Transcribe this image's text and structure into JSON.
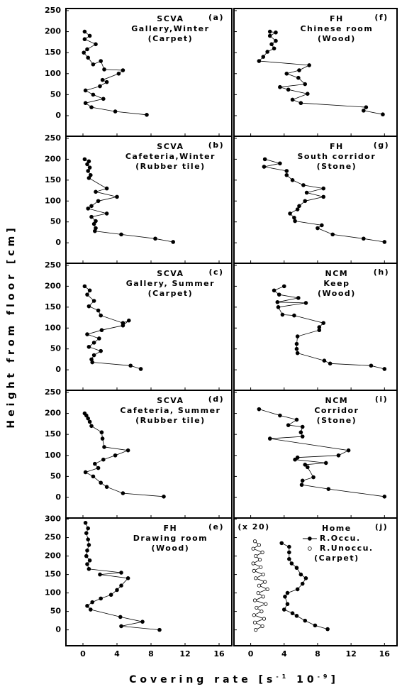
{
  "ylabel": "Height from floor [cm]",
  "xlabel": [
    "Covering rate [s",
    "-1",
    " 10",
    "-9",
    "]"
  ],
  "chart_data": [
    {
      "type": "line",
      "label": "(a)",
      "title_lines": [
        "SCVA",
        "Gallery,Winter",
        "(Carpet)"
      ],
      "xlim": [
        -2,
        17.5
      ],
      "ylim": [
        -49,
        255
      ],
      "xticks": [
        0,
        4,
        8,
        12,
        16
      ],
      "yticks": [
        0,
        50,
        100,
        150,
        200,
        250
      ],
      "series": [
        {
          "marker": "filled",
          "x": [
            0.2,
            0.8,
            0.2,
            1.5,
            0.5,
            0.1,
            0.6,
            1.2,
            2.1,
            2.5,
            4.7,
            4.2,
            2.3,
            2.8,
            2,
            0.3,
            1.2,
            2.4,
            0.3,
            1,
            3.8,
            7.5
          ],
          "y": [
            200,
            190,
            182,
            170,
            158,
            150,
            138,
            122,
            130,
            110,
            108,
            100,
            85,
            80,
            70,
            60,
            50,
            40,
            30,
            20,
            10,
            2
          ]
        }
      ]
    },
    {
      "type": "line",
      "label": "(b)",
      "title_lines": [
        "SCVA",
        "Cafeteria,Winter",
        "(Rubber tile)"
      ],
      "xlim": [
        -2,
        17.5
      ],
      "ylim": [
        -49,
        255
      ],
      "xticks": [
        0,
        4,
        8,
        12,
        16
      ],
      "yticks": [
        0,
        50,
        100,
        150,
        200,
        250
      ],
      "series": [
        {
          "marker": "filled",
          "x": [
            0.2,
            0.7,
            0.5,
            0.8,
            0.6,
            0.9,
            0.7,
            2.8,
            1.5,
            4,
            1.8,
            1,
            0.6,
            2.8,
            1,
            1.5,
            1.3,
            1.5,
            1.4,
            4.5,
            8.5,
            10.6
          ],
          "y": [
            200,
            195,
            188,
            180,
            172,
            162,
            155,
            130,
            122,
            110,
            100,
            88,
            82,
            70,
            62,
            52,
            45,
            35,
            28,
            20,
            10,
            2
          ]
        }
      ]
    },
    {
      "type": "line",
      "label": "(c)",
      "title_lines": [
        "SCVA",
        "Gallery, Summer",
        "(Carpet)"
      ],
      "xlim": [
        -2,
        17.5
      ],
      "ylim": [
        -49,
        255
      ],
      "xticks": [
        0,
        4,
        8,
        12,
        16
      ],
      "yticks": [
        0,
        50,
        100,
        150,
        200,
        250
      ],
      "series": [
        {
          "marker": "filled",
          "x": [
            0.2,
            0.8,
            0.5,
            1.3,
            0.7,
            1.8,
            2.1,
            4.7,
            5.4,
            4.7,
            2.2,
            0.5,
            1.9,
            1.3,
            0.7,
            2.1,
            1.3,
            1,
            1.1,
            5.6,
            6.8
          ],
          "y": [
            200,
            190,
            180,
            165,
            152,
            142,
            130,
            112,
            118,
            106,
            95,
            85,
            75,
            65,
            55,
            45,
            35,
            25,
            18,
            10,
            2
          ]
        }
      ]
    },
    {
      "type": "line",
      "label": "(d)",
      "title_lines": [
        "SCVA",
        "Cafeteria, Summer",
        "(Rubber tile)"
      ],
      "xlim": [
        -2,
        17.5
      ],
      "ylim": [
        -49,
        255
      ],
      "xticks": [
        0,
        4,
        8,
        12,
        16
      ],
      "yticks": [
        0,
        50,
        100,
        150,
        200,
        250
      ],
      "series": [
        {
          "marker": "filled",
          "x": [
            0.2,
            0.4,
            0.6,
            0.8,
            1,
            2.2,
            2.3,
            2.5,
            5.3,
            3.8,
            2.4,
            1.4,
            1.8,
            0.3,
            1.2,
            2.1,
            2.8,
            4.7,
            9.5
          ],
          "y": [
            200,
            195,
            188,
            180,
            170,
            155,
            140,
            120,
            112,
            100,
            90,
            80,
            70,
            60,
            50,
            35,
            25,
            10,
            2
          ]
        }
      ]
    },
    {
      "type": "line",
      "label": "(e)",
      "title_lines": [
        "FH",
        "Drawing room",
        "(Wood)"
      ],
      "xlim": [
        -2,
        17.5
      ],
      "ylim": [
        -43,
        303
      ],
      "xticks": [
        0,
        4,
        8,
        12,
        16
      ],
      "yticks": [
        0,
        50,
        100,
        150,
        200,
        250,
        300
      ],
      "series": [
        {
          "marker": "filled",
          "x": [
            0.3,
            0.6,
            0.4,
            0.6,
            0.7,
            0.5,
            0.4,
            0.8,
            0.5,
            0.7,
            4.5,
            2,
            5.3,
            4.5,
            4,
            3.3,
            2.1,
            1.1,
            0.5,
            0.9,
            4.4,
            7,
            4.5,
            9
          ],
          "y": [
            290,
            275,
            262,
            245,
            230,
            215,
            200,
            188,
            178,
            165,
            155,
            150,
            140,
            120,
            108,
            95,
            85,
            75,
            65,
            55,
            35,
            22,
            10,
            0
          ]
        }
      ]
    },
    {
      "type": "line",
      "label": "(f)",
      "title_lines": [
        "FH",
        "Chinese room",
        "(Wood)"
      ],
      "xlim": [
        -2,
        17.5
      ],
      "ylim": [
        -49,
        255
      ],
      "xticks": [
        0,
        4,
        8,
        12,
        16
      ],
      "yticks": [
        0,
        50,
        100,
        150,
        200,
        250
      ],
      "series": [
        {
          "marker": "filled",
          "x": [
            2.3,
            3,
            2.3,
            3,
            2.5,
            2.8,
            2,
            1.5,
            1,
            7,
            5.8,
            4.3,
            5.7,
            6.5,
            3.5,
            4.5,
            6.8,
            5,
            6,
            13.8,
            13.5,
            15.8
          ],
          "y": [
            200,
            198,
            190,
            178,
            170,
            160,
            152,
            140,
            130,
            120,
            108,
            100,
            90,
            75,
            68,
            62,
            52,
            38,
            30,
            20,
            12,
            3
          ]
        }
      ]
    },
    {
      "type": "line",
      "label": "(g)",
      "title_lines": [
        "FH",
        "South corridor",
        "(Stone)"
      ],
      "xlim": [
        -2,
        17.5
      ],
      "ylim": [
        -49,
        255
      ],
      "xticks": [
        0,
        4,
        8,
        12,
        16
      ],
      "yticks": [
        0,
        50,
        100,
        150,
        200,
        250
      ],
      "series": [
        {
          "marker": "filled",
          "x": [
            1.7,
            3.5,
            1.6,
            4.3,
            4.3,
            5,
            6.3,
            8.7,
            6.7,
            8.7,
            6.5,
            5.8,
            5.6,
            4.7,
            5.2,
            5.3,
            8.5,
            8,
            9.8,
            13.5,
            16
          ],
          "y": [
            200,
            190,
            182,
            172,
            162,
            150,
            138,
            130,
            120,
            110,
            100,
            88,
            80,
            70,
            60,
            52,
            42,
            35,
            20,
            10,
            2
          ]
        }
      ]
    },
    {
      "type": "line",
      "label": "(h)",
      "title_lines": [
        "NCM",
        "Keep",
        "(Wood)"
      ],
      "xlim": [
        -2,
        17.5
      ],
      "ylim": [
        -49,
        255
      ],
      "xticks": [
        0,
        4,
        8,
        12,
        16
      ],
      "yticks": [
        0,
        50,
        100,
        150,
        200,
        250
      ],
      "series": [
        {
          "marker": "filled",
          "x": [
            4,
            2.8,
            3.4,
            5.7,
            3.2,
            6.6,
            3.3,
            3.8,
            5.2,
            8.7,
            8.2,
            8.2,
            5.6,
            5.5,
            5.5,
            5.6,
            8.8,
            9.5,
            14.4,
            16
          ],
          "y": [
            200,
            190,
            180,
            172,
            162,
            160,
            150,
            132,
            130,
            112,
            102,
            95,
            80,
            62,
            50,
            40,
            22,
            15,
            10,
            2
          ]
        }
      ]
    },
    {
      "type": "line",
      "label": "(i)",
      "title_lines": [
        "NCM",
        "Corridor",
        "(Stone)"
      ],
      "xlim": [
        -2,
        17.5
      ],
      "ylim": [
        -49,
        255
      ],
      "xticks": [
        0,
        4,
        8,
        12,
        16
      ],
      "yticks": [
        0,
        50,
        100,
        150,
        200,
        250
      ],
      "series": [
        {
          "marker": "filled",
          "x": [
            1,
            3.5,
            5.5,
            4.5,
            6.2,
            6,
            6.2,
            2.3,
            11.7,
            10.5,
            5.6,
            5.3,
            9,
            6.5,
            6.8,
            7.5,
            6.2,
            6.1,
            9.3,
            16
          ],
          "y": [
            210,
            195,
            185,
            172,
            168,
            155,
            145,
            140,
            112,
            100,
            95,
            90,
            82,
            78,
            72,
            48,
            40,
            30,
            20,
            2
          ]
        }
      ]
    },
    {
      "type": "line",
      "label": "(j)",
      "title_lines": [
        "Home",
        "(Carpet)"
      ],
      "note": "(x 20)",
      "xlim": [
        -2,
        17.5
      ],
      "ylim": [
        -43,
        303
      ],
      "xticks": [
        0,
        4,
        8,
        12,
        16
      ],
      "yticks": [
        0,
        50,
        100,
        150,
        200,
        250,
        300
      ],
      "series": [
        {
          "name": "R.Occu.",
          "marker": "filled",
          "x": [
            3.7,
            4.6,
            4.6,
            4.6,
            4.9,
            5.5,
            6,
            6.6,
            6.2,
            5.6,
            4.4,
            4.1,
            4.4,
            4,
            5,
            5.5,
            6.5,
            7.7,
            9.2
          ],
          "y": [
            235,
            225,
            210,
            192,
            180,
            168,
            150,
            140,
            125,
            110,
            100,
            90,
            70,
            55,
            45,
            38,
            25,
            12,
            2
          ]
        },
        {
          "name": "R.Unoccu.",
          "marker": "open",
          "x": [
            0.6,
            1.4,
            0.5,
            1.6,
            0.4,
            1.3,
            0.7,
            1.8,
            0.5,
            1.5,
            0.9,
            2,
            1,
            1.7,
            0.6,
            1.5,
            0.4,
            1.2,
            0.3,
            1.1,
            0.6,
            1.4,
            0.3,
            1,
            0.5
          ],
          "y": [
            0,
            10,
            20,
            30,
            40,
            50,
            60,
            70,
            80,
            90,
            100,
            110,
            120,
            130,
            140,
            150,
            160,
            170,
            180,
            190,
            200,
            210,
            220,
            230,
            240
          ]
        }
      ]
    }
  ]
}
